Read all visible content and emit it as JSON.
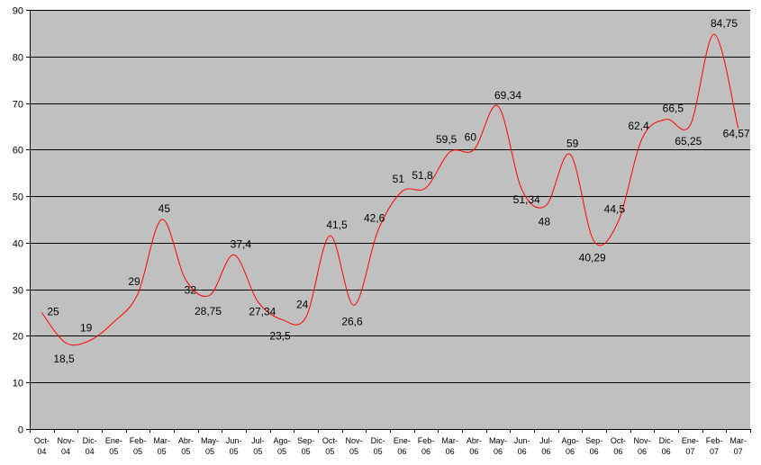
{
  "chart_data": {
    "type": "line",
    "title": "",
    "xlabel": "",
    "ylabel": "",
    "ylim": [
      0,
      90
    ],
    "yticks": [
      0,
      10,
      20,
      30,
      40,
      50,
      60,
      70,
      80,
      90
    ],
    "grid": "horizontal",
    "legend": "none",
    "colors": {
      "plot_background": "#c0c0c0",
      "line": "#ff0000",
      "gridline": "#000000"
    },
    "categories": [
      [
        "Oct-",
        "04"
      ],
      [
        "Nov-",
        "04"
      ],
      [
        "Dic-",
        "04"
      ],
      [
        "Ene-",
        "05"
      ],
      [
        "Feb-",
        "05"
      ],
      [
        "Mar-",
        "05"
      ],
      [
        "Abr-",
        "05"
      ],
      [
        "May-",
        "05"
      ],
      [
        "Jun-",
        "05"
      ],
      [
        "Jul-",
        "05"
      ],
      [
        "Ago-",
        "05"
      ],
      [
        "Sep-",
        "05"
      ],
      [
        "Oct-",
        "05"
      ],
      [
        "Nov-",
        "05"
      ],
      [
        "Dic-",
        "05"
      ],
      [
        "Ene-",
        "06"
      ],
      [
        "Feb-",
        "06"
      ],
      [
        "Mar-",
        "06"
      ],
      [
        "Abr-",
        "06"
      ],
      [
        "May-",
        "06"
      ],
      [
        "Jun-",
        "06"
      ],
      [
        "Jul-",
        "06"
      ],
      [
        "Ago-",
        "06"
      ],
      [
        "Sep-",
        "06"
      ],
      [
        "Oct-",
        "06"
      ],
      [
        "Nov-",
        "06"
      ],
      [
        "Dic-",
        "06"
      ],
      [
        "Ene-",
        "07"
      ],
      [
        "Feb-",
        "07"
      ],
      [
        "Mar-",
        "07"
      ]
    ],
    "series": [
      {
        "values": [
          25,
          18.5,
          19,
          23,
          29,
          45,
          32,
          28.75,
          37.4,
          27.34,
          23.5,
          24,
          41.5,
          26.6,
          42.6,
          51,
          51.8,
          59.5,
          60,
          69.34,
          51.34,
          48,
          59,
          40.29,
          44.5,
          62.4,
          66.5,
          65.25,
          84.75,
          64.57
        ],
        "labels": [
          "25",
          "18,5",
          "19",
          "",
          "29",
          "45",
          "32",
          "28,75",
          "37,4",
          "27,34",
          "23,5",
          "24",
          "41,5",
          "26,6",
          "42,6",
          "51",
          "51,8",
          "59,5",
          "60",
          "69,34",
          "51,34",
          "48",
          "59",
          "40,29",
          "44,5",
          "62,4",
          "66,5",
          "65,25",
          "84,75",
          "64,57"
        ]
      }
    ]
  }
}
